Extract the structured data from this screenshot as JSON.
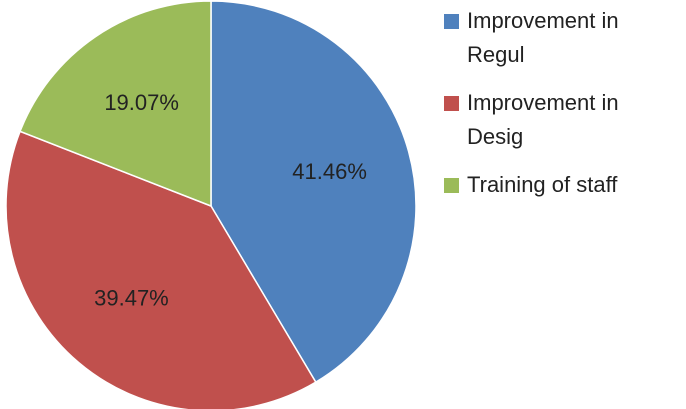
{
  "chart_data": {
    "type": "pie",
    "categories": [
      "Improvement in Regul",
      "Improvement in Desig",
      "Training of staff"
    ],
    "values": [
      41.46,
      39.47,
      19.07
    ],
    "value_labels": [
      "41.46%",
      "39.47%",
      "19.07%"
    ],
    "colors": [
      "#4f81bd",
      "#c0504d",
      "#9bbb59"
    ],
    "legend": "right"
  }
}
